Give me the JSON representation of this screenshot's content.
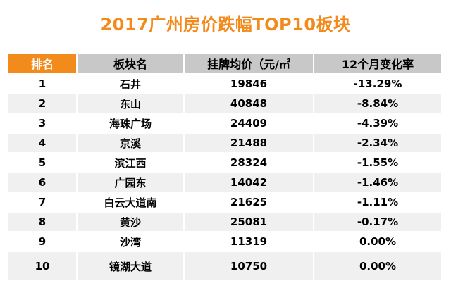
{
  "title": "2017广州房价跌幅TOP10板块",
  "table": {
    "headers": [
      "排名",
      "板块名",
      "挂牌均价（元/㎡",
      "12个月变化率"
    ],
    "rows": [
      {
        "rank": "1",
        "area": "石井",
        "price": "19846",
        "change": "-13.29%"
      },
      {
        "rank": "2",
        "area": "东山",
        "price": "40848",
        "change": "-8.84%"
      },
      {
        "rank": "3",
        "area": "海珠广场",
        "price": "24409",
        "change": "-4.39%"
      },
      {
        "rank": "4",
        "area": "京溪",
        "price": "21488",
        "change": "-2.34%"
      },
      {
        "rank": "5",
        "area": "滨江西",
        "price": "28324",
        "change": "-1.55%"
      },
      {
        "rank": "6",
        "area": "广园东",
        "price": "14042",
        "change": "-1.46%"
      },
      {
        "rank": "7",
        "area": "白云大道南",
        "price": "21625",
        "change": "-1.11%"
      },
      {
        "rank": "8",
        "area": "黄沙",
        "price": "25081",
        "change": "-0.17%"
      },
      {
        "rank": "9",
        "area": "沙湾",
        "price": "11319",
        "change": "0.00%"
      },
      {
        "rank": "10",
        "area": "镜湖大道",
        "price": "10750",
        "change": "0.00%"
      }
    ]
  },
  "colors": {
    "accent": "#f28a1c",
    "header_gray": "#c8c8c8",
    "stripe": "#f0f0f0"
  }
}
